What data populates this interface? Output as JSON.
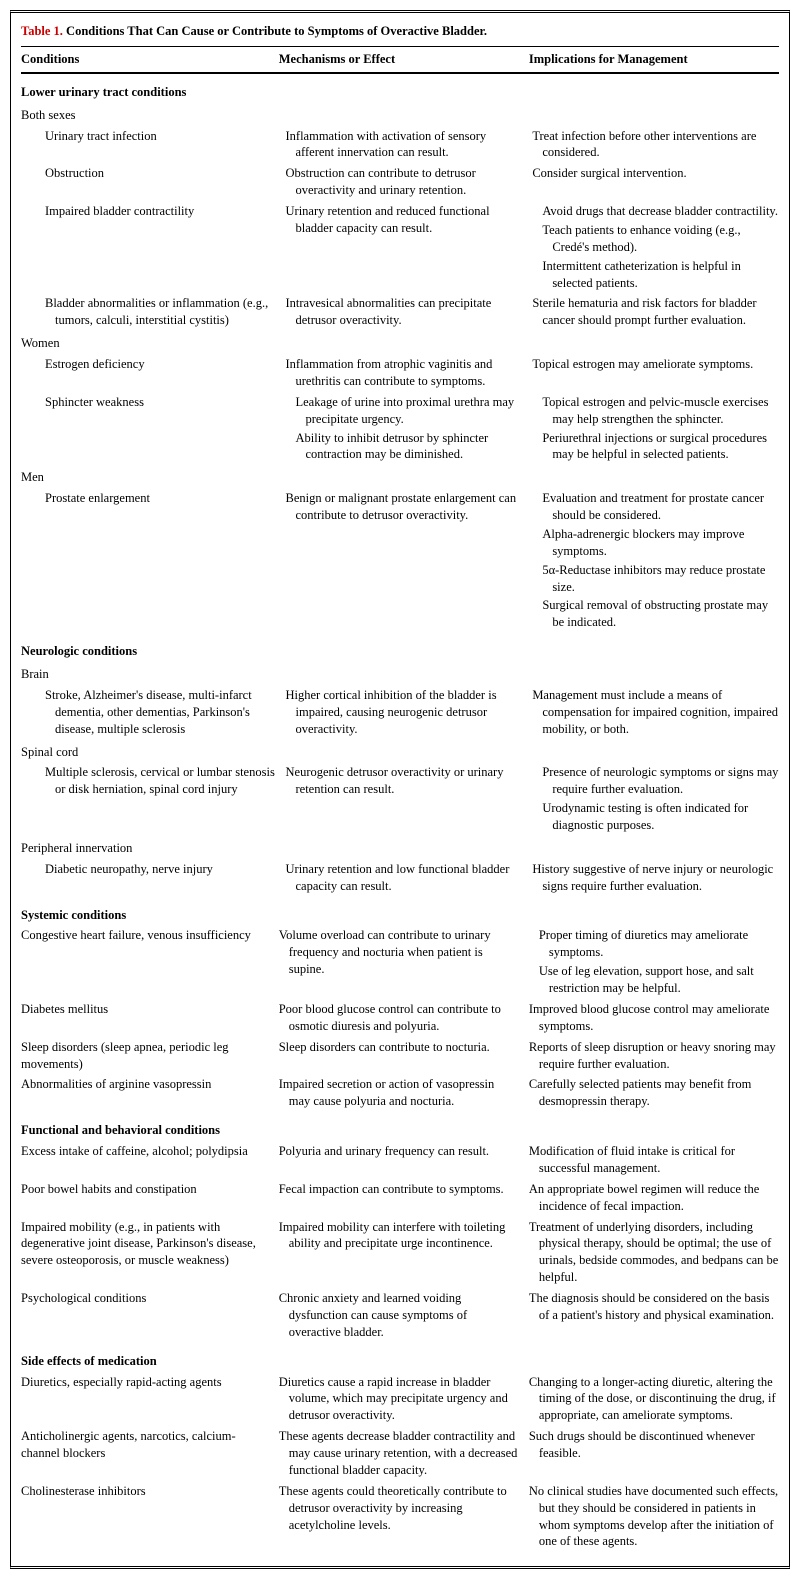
{
  "title_label": "Table 1.",
  "title_text": "Conditions That Can Cause or Contribute to Symptoms of Overactive Bladder.",
  "headers": {
    "c1": "Conditions",
    "c2": "Mechanisms or Effect",
    "c3": "Implications for Management"
  },
  "sections": [
    {
      "heading": "Lower urinary tract conditions",
      "groups": [
        {
          "sub": "Both sexes",
          "rows": [
            {
              "c1": "Urinary tract infection",
              "c2": "Inflammation with activation of sensory afferent innervation can result.",
              "c3": "Treat infection before other interventions are considered."
            },
            {
              "c1": "Obstruction",
              "c2": "Obstruction can contribute to detrusor overactivity and urinary retention.",
              "c3": "Consider surgical intervention."
            },
            {
              "c1": "Impaired bladder contractility",
              "c2": "Urinary retention and reduced functional bladder capacity can result.",
              "c3m": [
                "Avoid drugs that decrease bladder contractility.",
                "Teach patients to enhance voiding (e.g., Credé's method).",
                "Intermittent catheterization is helpful in selected patients."
              ]
            },
            {
              "c1": "Bladder abnormalities or inflammation (e.g., tumors, calculi, interstitial cystitis)",
              "c2": "Intravesical abnormalities can precipitate detrusor overactivity.",
              "c3": "Sterile hematuria and risk factors for bladder cancer should prompt further evaluation."
            }
          ]
        },
        {
          "sub": "Women",
          "rows": [
            {
              "c1": "Estrogen deficiency",
              "c2": "Inflammation from atrophic vaginitis and urethritis can contribute to symptoms.",
              "c3": "Topical estrogen may ameliorate symptoms."
            },
            {
              "c1": "Sphincter weakness",
              "c2m": [
                "Leakage of urine into proximal urethra may precipitate urgency.",
                "Ability to inhibit detrusor by sphincter contraction may be diminished."
              ],
              "c3m": [
                "Topical estrogen and pelvic-muscle exercises may help strengthen the sphincter.",
                "Periurethral injections or surgical procedures may be helpful in selected patients."
              ]
            }
          ]
        },
        {
          "sub": "Men",
          "rows": [
            {
              "c1": "Prostate enlargement",
              "c2": "Benign or malignant prostate enlargement can contribute to detrusor overactivity.",
              "c3m": [
                "Evaluation and treatment for prostate cancer should be considered.",
                "Alpha-adrenergic blockers may improve symptoms.",
                "5α-Reductase inhibitors may reduce prostate size.",
                "Surgical removal of obstructing prostate may be indicated."
              ]
            }
          ]
        }
      ]
    },
    {
      "heading": "Neurologic conditions",
      "groups": [
        {
          "sub": "Brain",
          "rows": [
            {
              "c1": "Stroke, Alzheimer's disease, multi-infarct dementia, other dementias, Parkinson's disease, multiple sclerosis",
              "c2": "Higher cortical inhibition of the bladder is impaired, causing neurogenic detrusor overactivity.",
              "c3": "Management must include a means of compensation for impaired cognition, impaired mobility, or both."
            }
          ]
        },
        {
          "sub": "Spinal cord",
          "rows": [
            {
              "c1": "Multiple sclerosis, cervical or lumbar stenosis or disk herniation, spinal cord injury",
              "c2": "Neurogenic detrusor overactivity or urinary retention can result.",
              "c3m": [
                "Presence of neurologic symptoms or signs may require further evaluation.",
                "Urodynamic testing is often indicated for diagnostic purposes."
              ]
            }
          ]
        },
        {
          "sub": "Peripheral innervation",
          "rows": [
            {
              "c1": "Diabetic neuropathy, nerve injury",
              "c2": "Urinary retention and low functional bladder capacity can result.",
              "c3": "History suggestive of nerve injury or neurologic signs require further evaluation."
            }
          ]
        }
      ]
    },
    {
      "heading": "Systemic conditions",
      "groups": [
        {
          "sub": null,
          "rows": [
            {
              "lvl0": true,
              "c1": "Congestive heart failure, venous insufficiency",
              "c2": "Volume overload can contribute to urinary frequency and nocturia when patient is supine.",
              "c3m": [
                "Proper timing of diuretics may ameliorate symptoms.",
                "Use of leg elevation, support hose, and salt restriction may be helpful."
              ]
            },
            {
              "lvl0": true,
              "c1": "Diabetes mellitus",
              "c2": "Poor blood glucose control can contribute to osmotic diuresis and polyuria.",
              "c3": "Improved blood glucose control may ameliorate symptoms."
            },
            {
              "lvl0": true,
              "c1": "Sleep disorders (sleep apnea, periodic leg movements)",
              "c2": "Sleep disorders can contribute to nocturia.",
              "c3": "Reports of sleep disruption or heavy snoring may require further evaluation."
            },
            {
              "lvl0": true,
              "c1": "Abnormalities of arginine vasopressin",
              "c2": "Impaired secretion or action of vasopressin may cause polyuria and nocturia.",
              "c3": "Carefully selected patients may benefit from desmopressin therapy."
            }
          ]
        }
      ]
    },
    {
      "heading": "Functional and behavioral conditions",
      "groups": [
        {
          "sub": null,
          "rows": [
            {
              "lvl0": true,
              "c1": "Excess intake of caffeine, alcohol; polydipsia",
              "c2": "Polyuria and urinary frequency can result.",
              "c3": "Modification of fluid intake is critical for successful management."
            },
            {
              "lvl0": true,
              "c1": "Poor bowel habits and constipation",
              "c2": "Fecal impaction can contribute to symptoms.",
              "c3": "An appropriate bowel regimen will reduce the incidence of fecal impaction."
            },
            {
              "lvl0": true,
              "c1": "Impaired mobility (e.g., in patients with degenerative joint disease, Parkinson's disease, severe osteoporosis, or muscle weakness)",
              "c2": "Impaired mobility can interfere with toileting ability and precipitate urge incontinence.",
              "c3": "Treatment of underlying disorders, including physical therapy, should be optimal; the use of urinals, bedside commodes, and bedpans can be helpful."
            },
            {
              "lvl0": true,
              "c1": "Psychological conditions",
              "c2": "Chronic anxiety and learned voiding dysfunction can cause symptoms of overactive bladder.",
              "c3": "The diagnosis should be considered on the basis of a patient's history and physical examination."
            }
          ]
        }
      ]
    },
    {
      "heading": "Side effects of medication",
      "groups": [
        {
          "sub": null,
          "rows": [
            {
              "lvl0": true,
              "c1": "Diuretics, especially rapid-acting agents",
              "c2": "Diuretics cause a rapid increase in bladder volume, which may precipitate urgency and detrusor overactivity.",
              "c3": "Changing to a longer-acting diuretic, altering the timing of the dose, or discontinuing the drug, if appropriate, can ameliorate symptoms."
            },
            {
              "lvl0": true,
              "c1": "Anticholinergic agents, narcotics, calcium-channel blockers",
              "c2": "These agents decrease bladder contractility and may cause urinary retention, with a decreased functional bladder capacity.",
              "c3": "Such drugs should be discontinued whenever feasible."
            },
            {
              "lvl0": true,
              "c1": "Cholinesterase inhibitors",
              "c2": "These agents could theoretically contribute to detrusor overactivity by increasing acetylcholine levels.",
              "c3": "No clinical studies have documented such effects, but they should be considered in patients in whom symptoms develop after the initiation of one of these agents."
            }
          ]
        }
      ]
    }
  ]
}
